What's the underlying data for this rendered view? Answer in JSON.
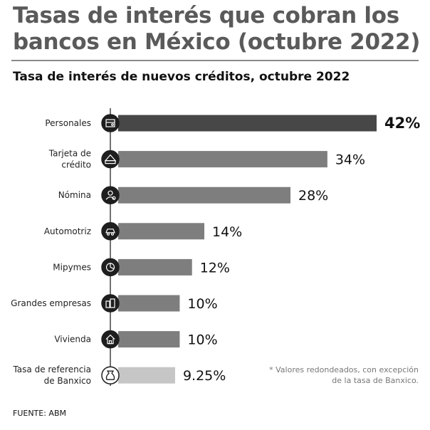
{
  "header": {
    "title_line1": "Tasas de interés que cobran los",
    "title_line2": "bancos en México (octubre 2022)",
    "subtitle": "Tasa de interés de nuevos créditos, octubre 2022"
  },
  "chart_data": {
    "type": "bar",
    "orientation": "horizontal",
    "title": "Tasa de interés de nuevos créditos, octubre 2022",
    "categories": [
      [
        "Personales"
      ],
      [
        "Tarjeta de",
        "crédito"
      ],
      [
        "Nómina"
      ],
      [
        "Automotriz"
      ],
      [
        "Mipymes"
      ],
      [
        "Grandes empresas"
      ],
      [
        "Vivienda"
      ],
      [
        "Tasa de referencia",
        "de Banxico"
      ]
    ],
    "values": [
      42,
      34,
      28,
      14,
      12,
      10,
      10,
      9.25
    ],
    "value_labels": [
      "42%",
      "34%",
      "28%",
      "14%",
      "12%",
      "10%",
      "10%",
      "9.25%"
    ],
    "icons": [
      "wallet-icon",
      "credit-card-icon",
      "payroll-worker-icon",
      "car-icon",
      "business-pie-icon",
      "buildings-icon",
      "house-icon",
      "bank-bag-icon"
    ],
    "bar_colors": [
      "#474747",
      "#7e7e7e",
      "#7e7e7e",
      "#7e7e7e",
      "#7e7e7e",
      "#7e7e7e",
      "#7e7e7e",
      "#c6c6c6"
    ],
    "highlight_index": 0,
    "xlim": [
      0,
      42
    ],
    "grid": false,
    "legend": "none"
  },
  "note": {
    "line1": "* Valores redondeados, con excepción",
    "line2": "de la tasa de Banxico."
  },
  "source": "FUENTE: ABM"
}
